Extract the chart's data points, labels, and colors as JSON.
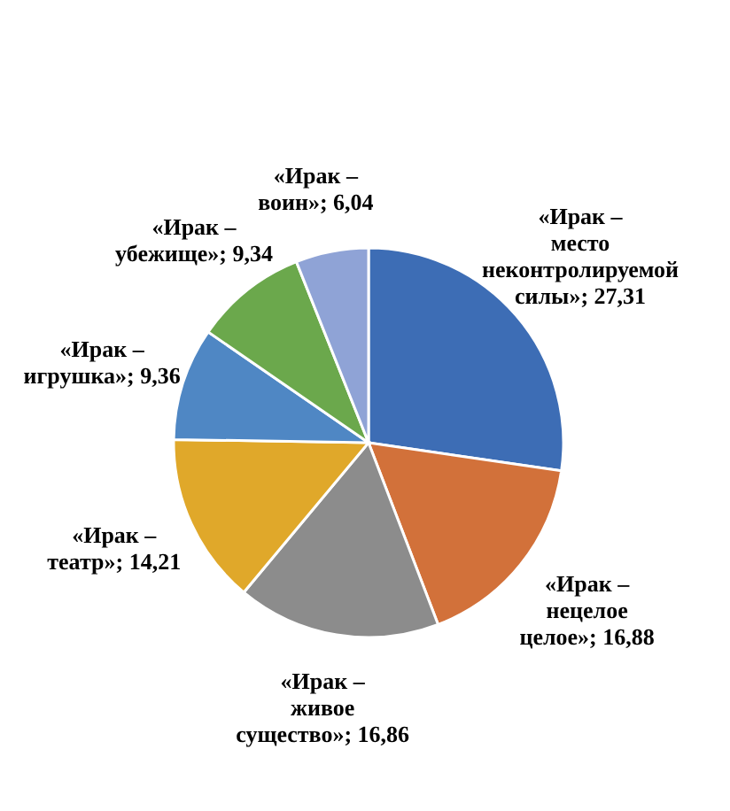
{
  "chart_data": {
    "type": "pie",
    "categories": [
      "«Ирак – место неконтролируемой силы»",
      "«Ирак – нецелое целое»",
      "«Ирак – живое существо»",
      "«Ирак – театр»",
      "«Ирак – игрушка»",
      "«Ирак – убежище»",
      "«Ирак – воин»"
    ],
    "values": [
      27.31,
      16.88,
      16.86,
      14.21,
      9.36,
      9.34,
      6.04
    ],
    "value_labels": [
      "27,31",
      "16,88",
      "16,86",
      "14,21",
      "9,36",
      "9,34",
      "6,04"
    ],
    "colors": [
      "#3d6db5",
      "#d2713a",
      "#8c8c8c",
      "#e0a82a",
      "#4f87c4",
      "#6ba84c",
      "#8fa3d6"
    ]
  }
}
